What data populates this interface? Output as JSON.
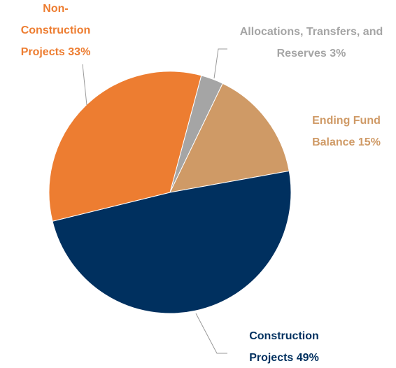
{
  "chart_data": {
    "type": "pie",
    "categories": [
      "Allocations, Transfers, and Reserves",
      "Ending Fund Balance",
      "Construction Projects",
      "Non-Construction Projects"
    ],
    "values": [
      3,
      15,
      49,
      33
    ],
    "value_labels": [
      "3%",
      "15%",
      "49%",
      "33%"
    ],
    "colors": [
      "#a5a5a5",
      "#cf9a66",
      "#00305f",
      "#ed7d31"
    ]
  }
}
